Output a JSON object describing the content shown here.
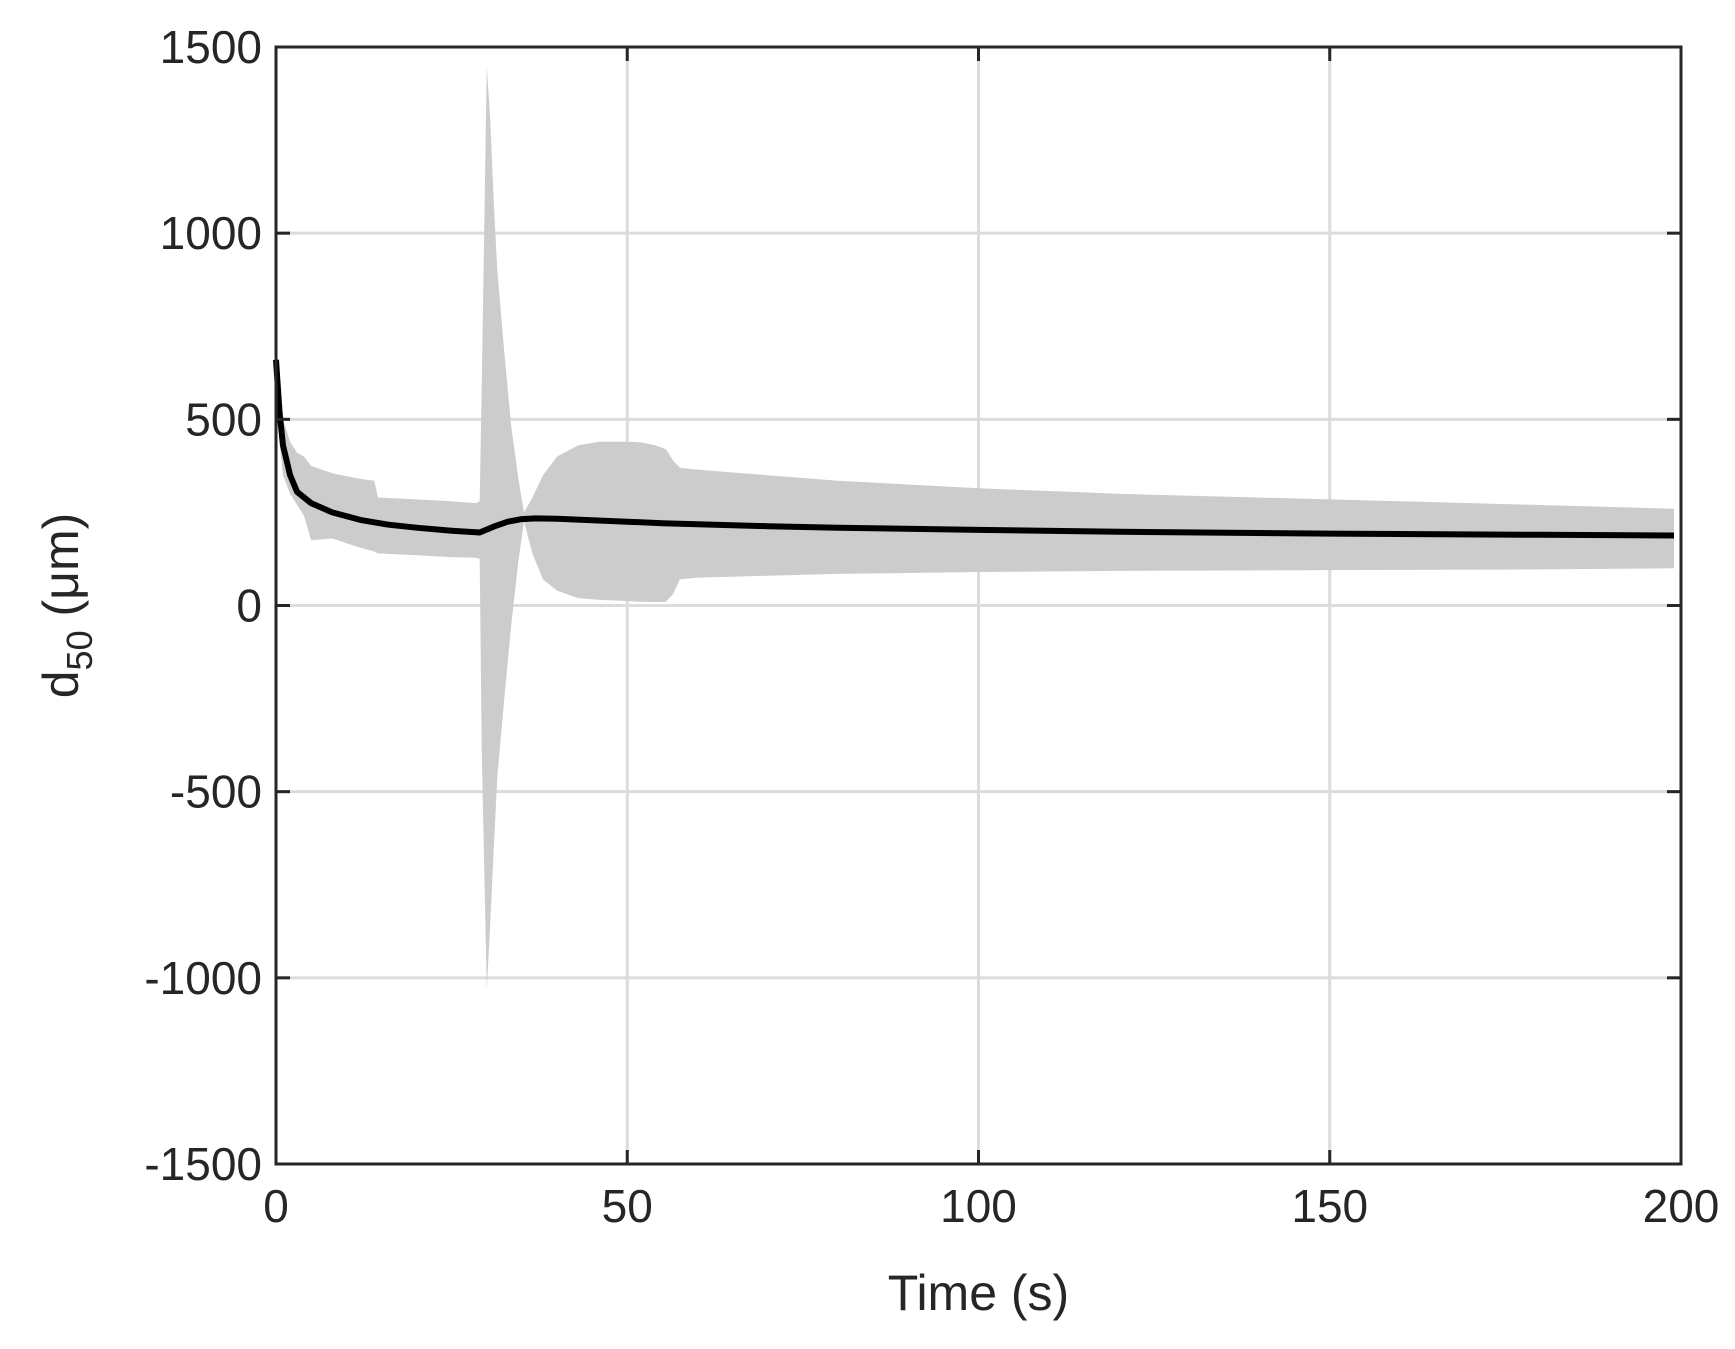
{
  "chart_data": {
    "type": "line",
    "xlabel": "Time (s)",
    "ylabel": {
      "base": "d",
      "subscript": "50",
      "unit": " (μm)"
    },
    "xlim": [
      0,
      200
    ],
    "ylim": [
      -1500,
      1500
    ],
    "x_ticks": [
      0,
      50,
      100,
      150,
      200
    ],
    "x_tick_labels": [
      "0",
      "50",
      "100",
      "150",
      "200"
    ],
    "y_ticks": [
      -1500,
      -1000,
      -500,
      0,
      500,
      1000,
      1500
    ],
    "y_tick_labels": [
      "-1500",
      "-1000",
      "-500",
      "0",
      "500",
      "1000",
      "1500"
    ],
    "grid": true,
    "colors": {
      "line": "#000000",
      "band": "#cccccc",
      "grid": "#dcdcdc",
      "axis": "#262626"
    },
    "series": [
      {
        "x": [
          0,
          0.5,
          1,
          2,
          3,
          5,
          8,
          12,
          16,
          20,
          25,
          29,
          31,
          33,
          35,
          37,
          40,
          45,
          50,
          55,
          60,
          70,
          80,
          100,
          120,
          150,
          180,
          199
        ],
        "values": [
          660,
          520,
          430,
          350,
          305,
          275,
          250,
          230,
          217,
          209,
          201,
          196,
          212,
          225,
          232,
          234,
          233,
          229,
          225,
          221,
          218,
          213,
          209,
          203,
          198,
          193,
          190,
          188
        ]
      }
    ],
    "band": {
      "x": [
        0,
        0.5,
        1,
        2,
        3,
        4,
        5,
        8,
        12,
        14,
        14.5,
        20,
        25,
        28.5,
        29,
        29.3,
        30,
        30.5,
        31,
        31.5,
        32.5,
        33.5,
        34.5,
        35.3,
        36.5,
        38,
        40,
        43,
        46,
        50,
        52,
        54,
        55.5,
        56.5,
        57.5,
        60,
        70,
        80,
        100,
        120,
        150,
        180,
        199
      ],
      "upper": [
        660,
        560,
        500,
        440,
        410,
        400,
        375,
        355,
        340,
        335,
        290,
        285,
        280,
        275,
        280,
        600,
        1450,
        1300,
        1080,
        900,
        680,
        480,
        340,
        250,
        290,
        350,
        400,
        430,
        440,
        440,
        438,
        430,
        420,
        390,
        370,
        365,
        350,
        335,
        315,
        300,
        285,
        270,
        260
      ],
      "lower": [
        660,
        440,
        350,
        300,
        270,
        240,
        175,
        180,
        155,
        145,
        140,
        135,
        130,
        128,
        125,
        -400,
        -1030,
        -850,
        -650,
        -460,
        -250,
        -50,
        120,
        225,
        140,
        70,
        40,
        20,
        15,
        12,
        10,
        9,
        10,
        30,
        70,
        75,
        80,
        85,
        90,
        93,
        95,
        97,
        100
      ]
    }
  }
}
